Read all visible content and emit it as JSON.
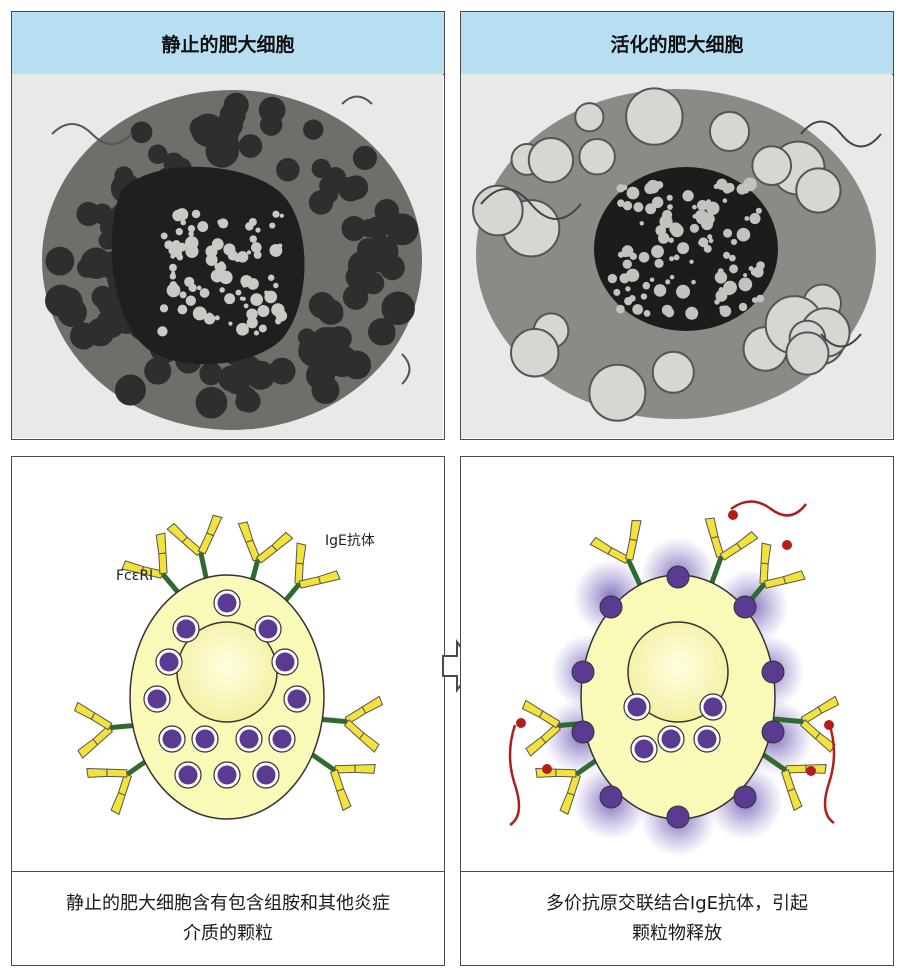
{
  "panels": {
    "resting": {
      "title": "静止的肥大细胞",
      "receptor_label": "FcεRI",
      "antibody_label": "IgE抗体",
      "caption_line1": "静止的肥大细胞含有包含组胺和其他炎症",
      "caption_line2": "介质的颗粒"
    },
    "activated": {
      "title": "活化的肥大细胞",
      "caption_line1": "多价抗原交联结合IgE抗体，引起",
      "caption_line2": "颗粒物释放"
    }
  },
  "colors": {
    "header_bg": "#b7dff1",
    "cell_fill": "#fafab8",
    "granule": "#5a3b91",
    "receptor": "#2f6b2f",
    "antibody": "#f2e23a",
    "antigen": "#b21d1d"
  }
}
